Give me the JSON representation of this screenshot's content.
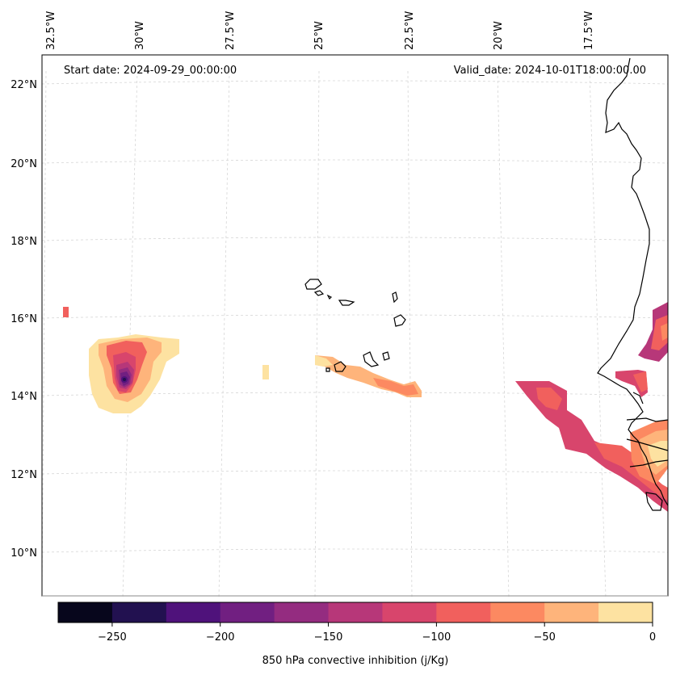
{
  "map": {
    "start_date_label": "Start date: 2024-09-29_00:00:00",
    "valid_date_label": "Valid_date: 2024-10-01T18:00:00.00",
    "lon_ticks": [
      "32.5°W",
      "30°W",
      "27.5°W",
      "25°W",
      "22.5°W",
      "20°W",
      "17.5°W"
    ],
    "lat_ticks": [
      "22°N",
      "20°N",
      "18°N",
      "16°N",
      "14°N",
      "12°N",
      "10°N"
    ],
    "gridlines": true
  },
  "colorbar": {
    "label": "850 hPa convective inhibition (j/Kg)",
    "tick_labels": [
      "−250",
      "−200",
      "−150",
      "−100",
      "−50",
      "0"
    ],
    "levels": [
      -275,
      -250,
      -225,
      -200,
      -175,
      -150,
      -125,
      -100,
      -75,
      -50,
      -25,
      0
    ],
    "colors": [
      "#07061c",
      "#221150",
      "#4f127b",
      "#711f81",
      "#942c80",
      "#b73779",
      "#d8456c",
      "#f1605d",
      "#fc8961",
      "#feb47b",
      "#fde2a1"
    ]
  }
}
